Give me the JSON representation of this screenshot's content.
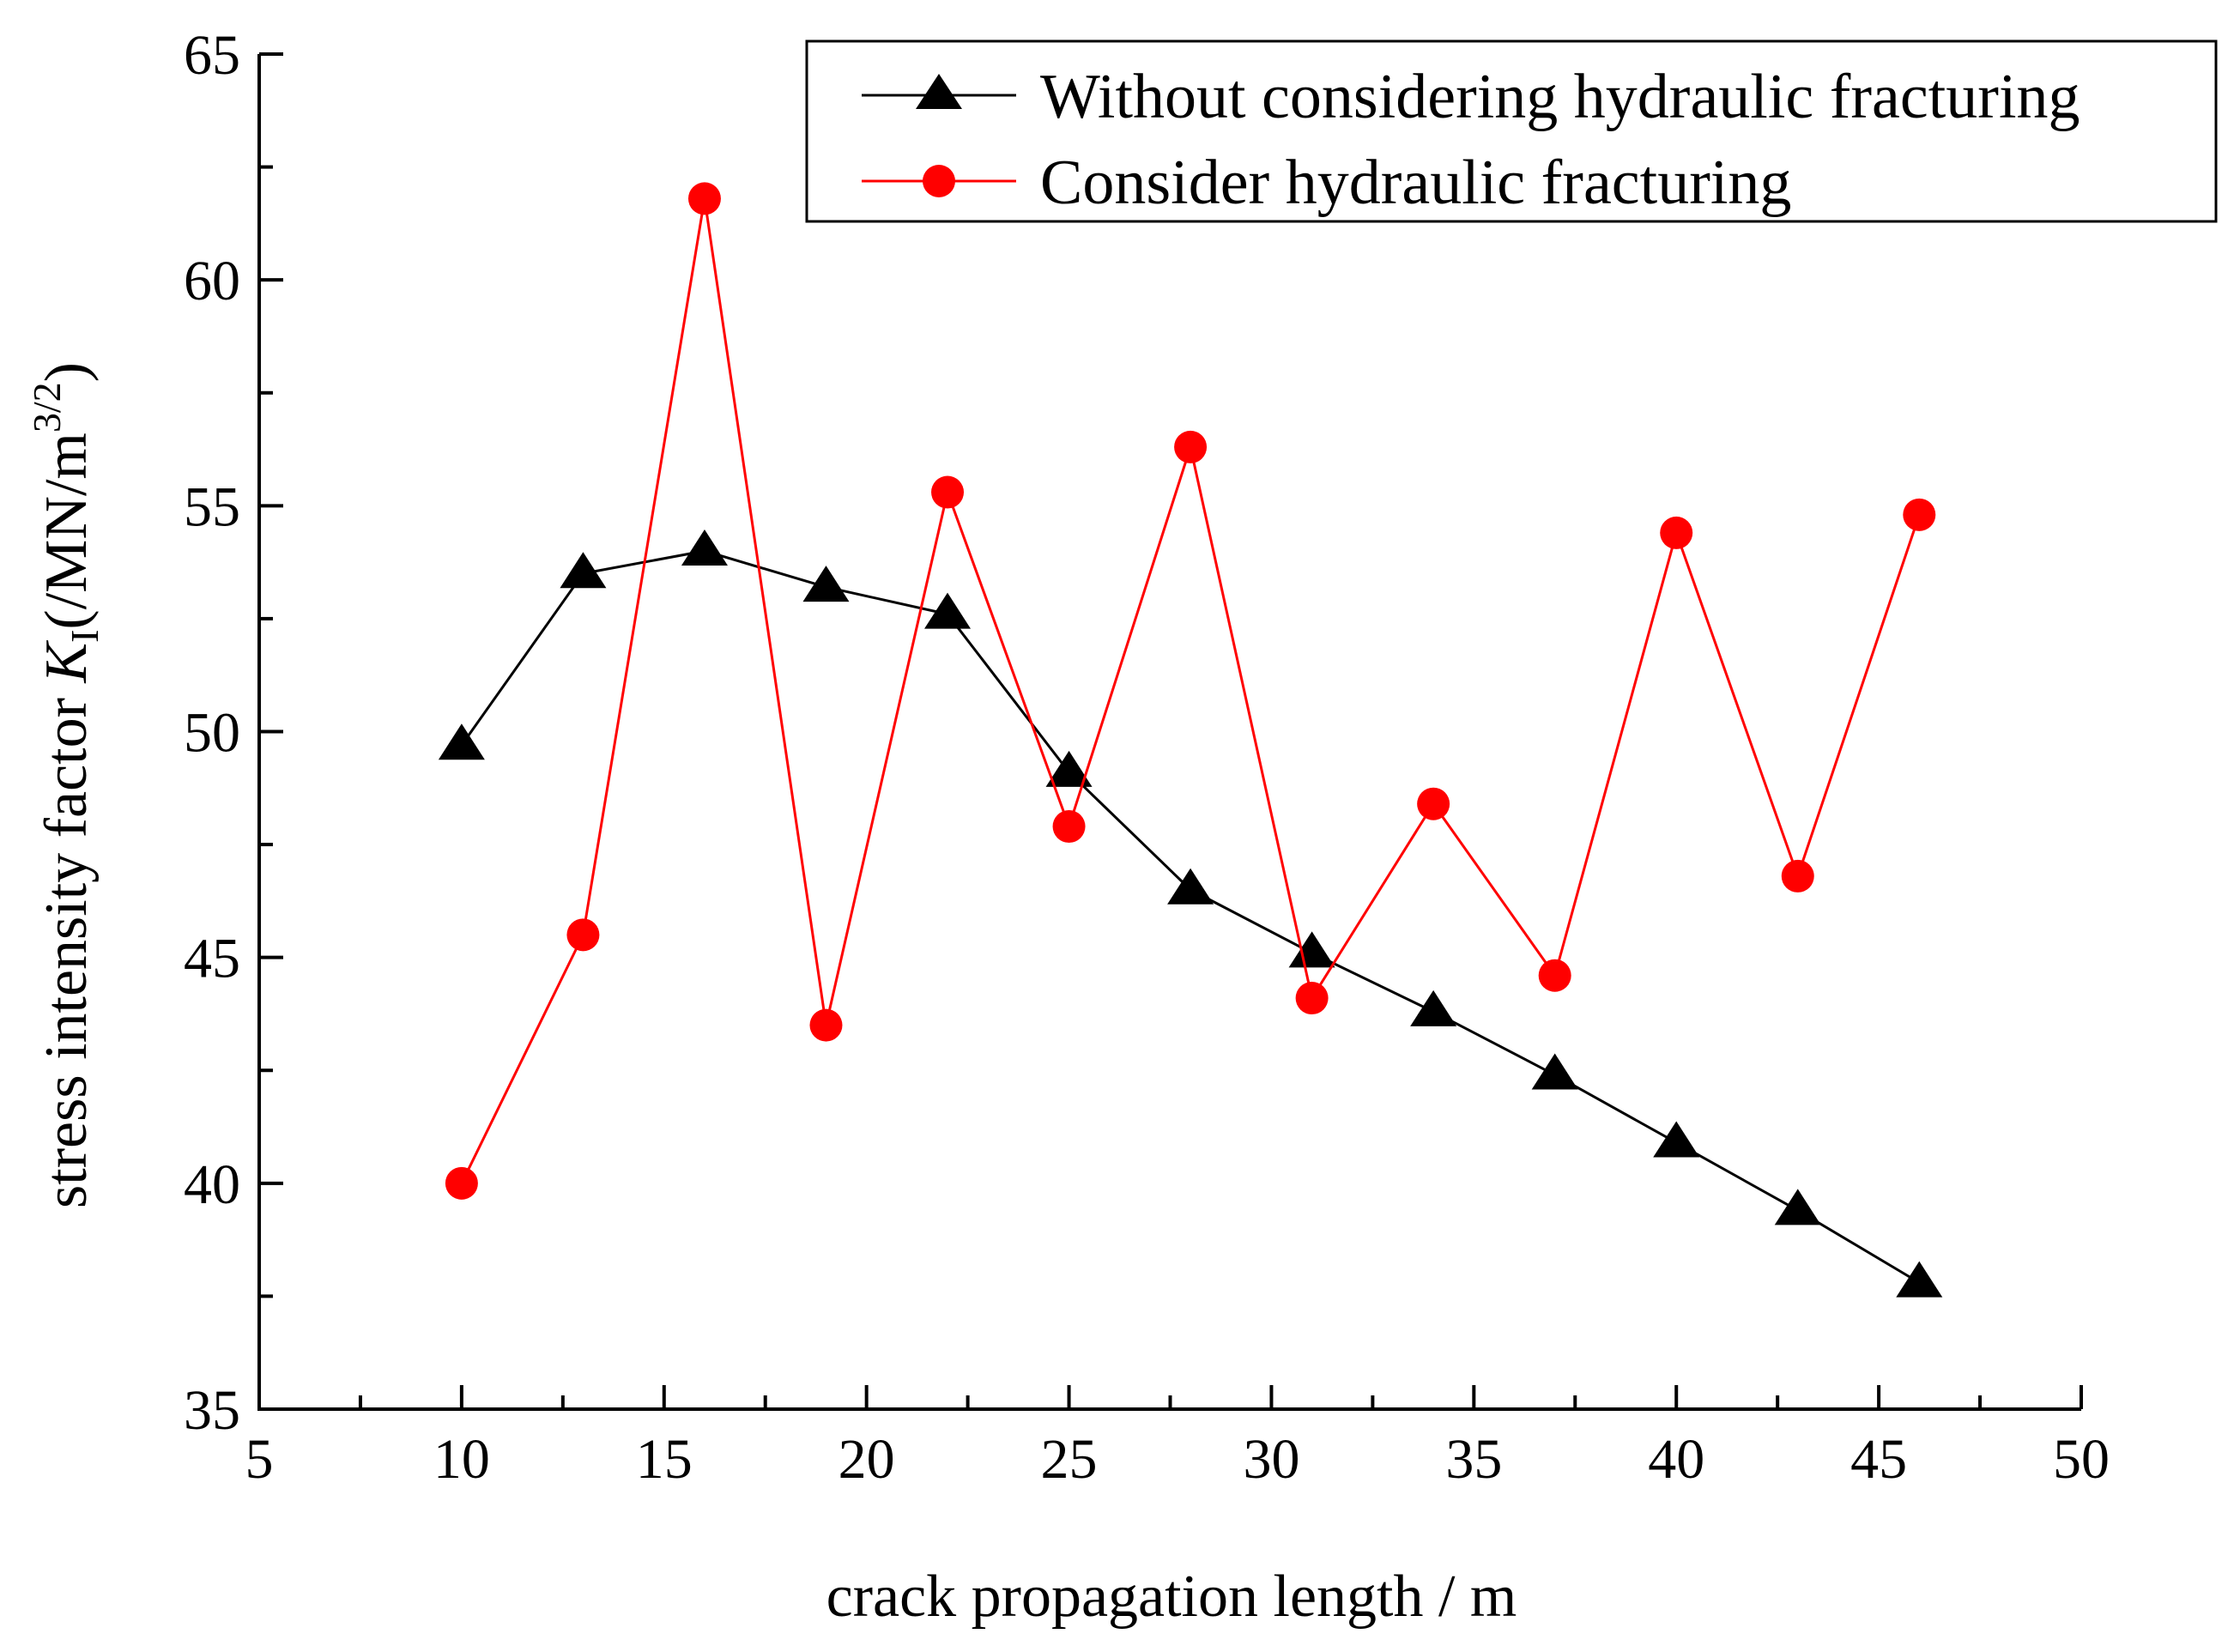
{
  "chart_data": {
    "type": "line",
    "title": "",
    "xlabel": "crack propagation length / m",
    "ylabel": {
      "prefix": "stress intensity factor ",
      "symbol": "K",
      "subscript": "I",
      "unit_open": "(/MN/m",
      "superscript": "3/2",
      "unit_close": ")"
    },
    "xlim": [
      5,
      50
    ],
    "ylim": [
      35,
      65
    ],
    "x_ticks": [
      5,
      10,
      15,
      20,
      25,
      30,
      35,
      40,
      45,
      50
    ],
    "y_ticks": [
      35,
      40,
      45,
      50,
      55,
      60,
      65
    ],
    "grid": false,
    "legend_position": "top-right",
    "series": [
      {
        "name": "Without considering hydraulic fracturing",
        "color": "#000000",
        "marker": "triangle",
        "x": [
          10,
          13,
          16,
          19,
          22,
          25,
          28,
          31,
          34,
          37,
          40,
          43,
          46
        ],
        "y": [
          49.7,
          53.5,
          54.0,
          53.2,
          52.6,
          49.1,
          46.5,
          45.1,
          43.8,
          42.4,
          40.9,
          39.4,
          37.8
        ]
      },
      {
        "name": "Consider hydraulic fracturing",
        "color": "#ff0000",
        "marker": "circle",
        "x": [
          10,
          13,
          16,
          19,
          22,
          25,
          28,
          31,
          34,
          37,
          40,
          43,
          46
        ],
        "y": [
          40.0,
          45.5,
          61.8,
          43.5,
          55.3,
          47.9,
          56.3,
          44.1,
          48.4,
          44.6,
          54.4,
          46.8,
          54.8
        ]
      }
    ]
  }
}
